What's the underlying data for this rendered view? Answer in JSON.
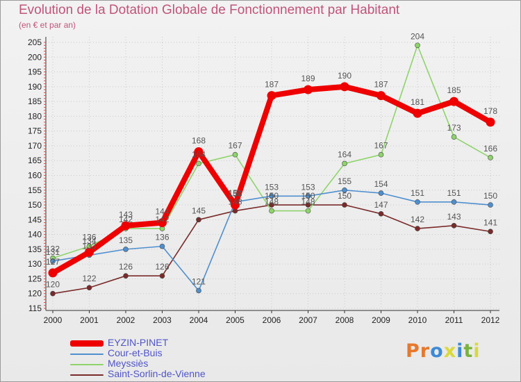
{
  "title": "Evolution de la Dotation Globale de Fonctionnement par Habitant",
  "subtitle": "(en € et par an)",
  "logo": {
    "text": "Proxiti",
    "colors": [
      "#e7782c",
      "#e7782c",
      "#3d8ad6",
      "#d9d93a",
      "#3d8ad6",
      "#7ab33d",
      "#d9d93a"
    ]
  },
  "chart_data": {
    "type": "line",
    "title": "Evolution de la Dotation Globale de Fonctionnement par Habitant",
    "subtitle": "(en € et par an)",
    "xlabel": "",
    "ylabel": "",
    "x": [
      "2000",
      "2001",
      "2002",
      "2003",
      "2004",
      "2005",
      "2006",
      "2007",
      "2008",
      "2009",
      "2010",
      "2011",
      "2012"
    ],
    "ylim": [
      115,
      205
    ],
    "yticks": [
      115,
      120,
      125,
      130,
      135,
      140,
      145,
      150,
      155,
      160,
      165,
      170,
      175,
      180,
      185,
      190,
      195,
      200,
      205
    ],
    "legend_position": "bottom-left",
    "series": [
      {
        "name": "Saint-Sorlin-de-Vienne",
        "color": "#7a2a2a",
        "values": [
          120,
          122,
          126,
          126,
          145,
          148,
          150,
          150,
          150,
          147,
          142,
          143,
          141
        ]
      },
      {
        "name": "Meyssiès",
        "color": "#8ed46a",
        "values": [
          132,
          136,
          142,
          142,
          164,
          167,
          148,
          148,
          164,
          167,
          204,
          173,
          166
        ]
      },
      {
        "name": "Cour-et-Buis",
        "color": "#4f8fcf",
        "values": [
          131,
          133,
          135,
          136,
          121,
          151,
          153,
          153,
          155,
          154,
          151,
          151,
          150
        ]
      },
      {
        "name": "EYZIN-PINET",
        "color": "#ee0000",
        "values": [
          127,
          134,
          143,
          144,
          168,
          150,
          187,
          189,
          190,
          187,
          181,
          185,
          178
        ]
      }
    ],
    "legend_order": [
      "EYZIN-PINET",
      "Cour-et-Buis",
      "Meyssiès",
      "Saint-Sorlin-de-Vienne"
    ]
  }
}
